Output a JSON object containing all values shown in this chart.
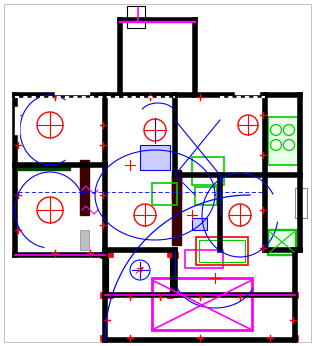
{
  "bg_color": "#ffffff",
  "wall_color": "#000000",
  "magenta": "#ff00ff",
  "red": "#ff0000",
  "blue": "#0000ff",
  "green": "#00cc00",
  "dark_red": "#8b0000",
  "gray": "#888888",
  "fig_width": 3.15,
  "fig_height": 3.46,
  "dpi": 100
}
